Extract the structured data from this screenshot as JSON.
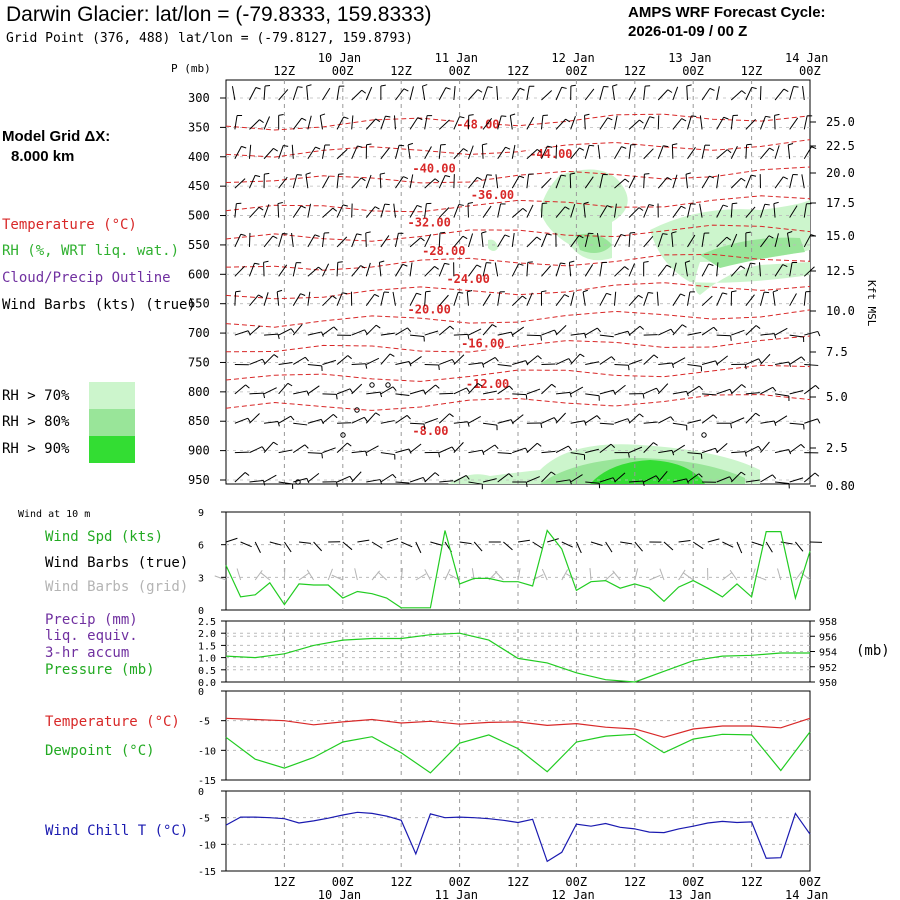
{
  "header": {
    "title": "Darwin Glacier:  lat/lon = (-79.8333, 159.8333)",
    "subtitle": "Grid Point (376, 488) lat/lon = (-79.8127, 159.8793)",
    "cycle_line1": "AMPS WRF Forecast Cycle:",
    "cycle_line2": "2026-01-09 / 00  Z"
  },
  "model_grid": {
    "line1": "Model Grid ΔX:",
    "line2": "8.000 km"
  },
  "legend": {
    "temperature": "Temperature (°C)",
    "rh": "RH (%, WRT liq. wat.)",
    "cloud": "Cloud/Precip Outline",
    "wind": "Wind Barbs (kts) (true)",
    "rh70": "RH > 70%",
    "rh80": "RH > 80%",
    "rh90": "RH > 90%"
  },
  "colors": {
    "temperature": "#d82828",
    "rh70": "#ccf5cc",
    "rh80": "#99e599",
    "rh90": "#33dd33",
    "green_line": "#22cc22",
    "wind_chill": "#1a1ab0",
    "grid_barb": "#b4b4b4"
  },
  "axes": {
    "p_label": "P (mb)",
    "kft_label": "Kft MSL",
    "time_labels": [
      "12Z",
      "00Z",
      "12Z",
      "00Z",
      "12Z",
      "00Z",
      "12Z",
      "00Z",
      "12Z",
      "00Z"
    ],
    "date_labels": [
      "10 Jan",
      "11 Jan",
      "12 Jan",
      "13 Jan",
      "14 Jan"
    ]
  },
  "panels": {
    "wind_header": "Wind at 10 m",
    "wind_spd": "Wind Spd (kts)",
    "wind_barbs_true": "Wind Barbs (true)",
    "wind_barbs_grid": "Wind Barbs (grid)",
    "precip_1": "Precip (mm)",
    "precip_2": "liq. equiv.",
    "precip_3": "3-hr accum",
    "pressure": "Pressure (mb)",
    "pressure_unit": "(mb)",
    "temperature": "Temperature (°C)",
    "dewpoint": "Dewpoint (°C)",
    "wind_chill": "Wind Chill T (°C)"
  },
  "chart_data": [
    {
      "type": "heatmap",
      "pressure_levels": [
        300,
        350,
        400,
        450,
        500,
        550,
        600,
        650,
        700,
        750,
        800,
        850,
        900,
        950
      ],
      "height_ticks_kft": [
        25.0,
        22.5,
        20.0,
        17.5,
        15.0,
        12.5,
        10.0,
        7.5,
        5.0,
        2.5,
        0.8
      ],
      "height_tick_labels": [
        "25.0",
        "22.5",
        "20.0",
        "17.5",
        "15.0",
        "12.5",
        "10.0",
        "7.5",
        "5.0",
        "2.5",
        "0.80"
      ],
      "x_range_hours": [
        0,
        120
      ],
      "temperature_contours": [
        {
          "label": "-48.00",
          "value": -48,
          "label_at": [
            51,
            345
          ]
        },
        {
          "label": "-44.00",
          "value": -44,
          "label_at": [
            66,
            395
          ]
        },
        {
          "label": "-40.00",
          "value": -40,
          "label_at": [
            42,
            420
          ]
        },
        {
          "label": "-36.00",
          "value": -36,
          "label_at": [
            54,
            465
          ]
        },
        {
          "label": "-32.00",
          "value": -32,
          "label_at": [
            41,
            512
          ]
        },
        {
          "label": "-28.00",
          "value": -28,
          "label_at": [
            44,
            560
          ]
        },
        {
          "label": "-24.00",
          "value": -24,
          "label_at": [
            49,
            608
          ]
        },
        {
          "label": "-20.00",
          "value": -20,
          "label_at": [
            41,
            660
          ]
        },
        {
          "label": "-16.00",
          "value": -16,
          "label_at": [
            52,
            718
          ]
        },
        {
          "label": "-12.00",
          "value": -12,
          "label_at": [
            53,
            787
          ]
        },
        {
          "label": "-8.00",
          "value": -8,
          "label_at": [
            42,
            867
          ]
        }
      ]
    },
    {
      "type": "line",
      "x_hours": [
        0,
        3,
        6,
        9,
        12,
        15,
        18,
        21,
        24,
        27,
        30,
        33,
        36,
        39,
        42,
        45,
        48,
        51,
        54,
        57,
        60,
        63,
        66,
        69,
        72,
        75,
        78,
        81,
        84,
        87,
        90,
        93,
        96,
        99,
        102,
        105,
        108,
        111,
        114,
        117,
        120
      ],
      "ylim": [
        0,
        9
      ],
      "y_ticks": [
        0,
        3,
        6,
        9
      ],
      "series": [
        {
          "name": "Wind Spd (kts)",
          "values": [
            4.1,
            1.2,
            1.4,
            2.5,
            0.5,
            2.4,
            2.3,
            2.3,
            1.1,
            1.7,
            1.5,
            1.1,
            0.2,
            0.2,
            0.2,
            7.3,
            2.4,
            2.9,
            2.9,
            2.6,
            2.6,
            2.2,
            7.3,
            5.6,
            1.8,
            2.6,
            2.7,
            2.0,
            2.4,
            2.0,
            0.8,
            2.1,
            2.7,
            2.0,
            1.2,
            2.4,
            1.2,
            7.2,
            7.2,
            1.1,
            5.4
          ]
        }
      ]
    },
    {
      "type": "line",
      "x_hours": [
        0,
        6,
        12,
        18,
        24,
        30,
        36,
        42,
        48,
        54,
        60,
        66,
        72,
        78,
        84,
        90,
        96,
        102,
        108,
        114,
        120
      ],
      "y_left": {
        "ylim": [
          0,
          2.5
        ],
        "ticks": [
          0.0,
          0.5,
          1.0,
          1.5,
          2.0,
          2.5
        ],
        "tick_labels": [
          "0.0",
          "0.5",
          "1.0",
          "1.5",
          "2.0",
          "2.5"
        ]
      },
      "y_right": {
        "ylim": [
          950,
          958
        ],
        "ticks": [
          950,
          952,
          954,
          956,
          958
        ],
        "tick_labels": [
          "950",
          "952",
          "954",
          "956",
          "958"
        ]
      },
      "series": [
        {
          "name": "Pressure (mb)",
          "axis": "right",
          "values": [
            953.4,
            953.2,
            953.7,
            954.8,
            955.5,
            955.7,
            955.7,
            956.2,
            956.4,
            955.5,
            953.1,
            952.5,
            951.2,
            950.3,
            950.0,
            951.4,
            952.8,
            953.4,
            953.5,
            953.8,
            953.8
          ]
        }
      ]
    },
    {
      "type": "line",
      "x_hours": [
        0,
        6,
        12,
        18,
        24,
        30,
        36,
        42,
        48,
        54,
        60,
        66,
        72,
        78,
        84,
        90,
        96,
        102,
        108,
        114,
        120
      ],
      "ylim": [
        -15,
        0
      ],
      "y_ticks": [
        -15,
        -10,
        -5,
        0
      ],
      "series": [
        {
          "name": "Temperature (°C)",
          "values": [
            -4.6,
            -4.8,
            -5.0,
            -5.7,
            -5.2,
            -4.8,
            -5.4,
            -5.1,
            -5.6,
            -5.3,
            -5.2,
            -5.8,
            -5.5,
            -6.1,
            -6.4,
            -7.8,
            -6.4,
            -5.9,
            -5.9,
            -6.2,
            -4.6
          ]
        },
        {
          "name": "Dewpoint (°C)",
          "values": [
            -7.8,
            -11.5,
            -13.0,
            -11.2,
            -8.6,
            -7.7,
            -10.4,
            -13.8,
            -8.8,
            -7.4,
            -9.7,
            -13.6,
            -8.6,
            -7.6,
            -7.3,
            -10.4,
            -8.1,
            -7.3,
            -7.4,
            -13.4,
            -6.9
          ]
        }
      ]
    },
    {
      "type": "line",
      "x_hours": [
        0,
        3,
        6,
        9,
        12,
        15,
        18,
        21,
        24,
        27,
        30,
        33,
        36,
        39,
        42,
        45,
        48,
        51,
        54,
        57,
        60,
        63,
        66,
        69,
        72,
        75,
        78,
        81,
        84,
        87,
        90,
        93,
        96,
        99,
        102,
        105,
        108,
        111,
        114,
        117,
        120
      ],
      "ylim": [
        -15,
        0
      ],
      "y_ticks": [
        -15,
        -10,
        -5,
        0
      ],
      "series": [
        {
          "name": "Wind Chill T (°C)",
          "values": [
            -6.4,
            -4.9,
            -4.9,
            -5.0,
            -5.2,
            -6.0,
            -5.6,
            -5.1,
            -4.5,
            -4.0,
            -4.2,
            -4.7,
            -5.5,
            -11.8,
            -4.3,
            -5.0,
            -4.9,
            -5.0,
            -5.2,
            -5.5,
            -5.9,
            -5.3,
            -13.2,
            -11.5,
            -6.2,
            -6.6,
            -6.1,
            -6.8,
            -7.1,
            -7.7,
            -7.8,
            -7.1,
            -6.6,
            -6.0,
            -5.7,
            -5.9,
            -5.8,
            -12.6,
            -12.5,
            -4.2,
            -8.1
          ]
        }
      ]
    }
  ]
}
